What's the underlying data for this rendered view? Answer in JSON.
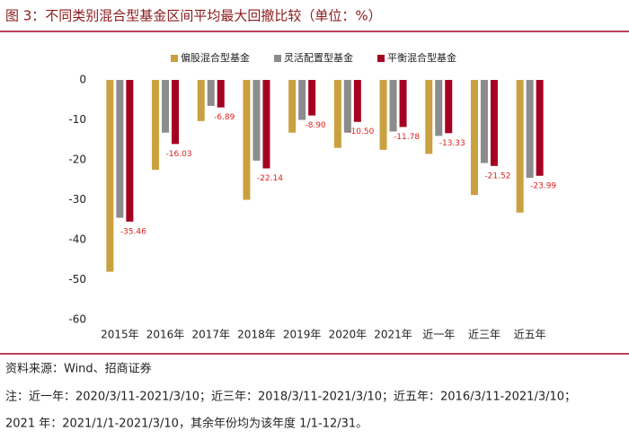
{
  "chart_data": {
    "type": "bar",
    "title": "图 3：不同类别混合型基金区间平均最大回撤比较（单位：%）",
    "categories": [
      "2015年",
      "2016年",
      "2017年",
      "2018年",
      "2019年",
      "2020年",
      "2021年",
      "近一年",
      "近三年",
      "近五年"
    ],
    "series": [
      {
        "name": "偏股混合型基金",
        "color": "#c9a13e",
        "values": [
          -48,
          -22.5,
          -10.3,
          -30,
          -13.2,
          -17,
          -17.5,
          -18.5,
          -28.8,
          -33.2
        ]
      },
      {
        "name": "灵活配置型基金",
        "color": "#8c8c8c",
        "values": [
          -34.5,
          -13.2,
          -6.5,
          -20.2,
          -10,
          -13.2,
          -12.9,
          -14,
          -20.8,
          -24.5
        ]
      },
      {
        "name": "平衡混合型基金",
        "color": "#a50021",
        "values": [
          -35.46,
          -16.03,
          -6.89,
          -22.14,
          -8.9,
          -10.5,
          -11.78,
          -13.33,
          -21.52,
          -23.99
        ],
        "value_labels": [
          "-35.46",
          "-16.03",
          "-6.89",
          "-22.14",
          "-8.90",
          "-10.50",
          "-11.78",
          "-13.33",
          "-21.52",
          "-23.99"
        ]
      }
    ],
    "ylim": [
      -60,
      0
    ],
    "yticks": [
      0,
      -10,
      -20,
      -30,
      -40,
      -50,
      -60
    ],
    "grid": false,
    "source": "资料来源：Wind、招商证券",
    "notes": [
      "注：近一年：2020/3/11-2021/3/10；近三年：2018/3/11-2021/3/10；近五年：2016/3/11-2021/3/10；",
      "2021 年：2021/1/1-2021/3/10，其余年份均为该年度 1/1-12/31。"
    ]
  }
}
